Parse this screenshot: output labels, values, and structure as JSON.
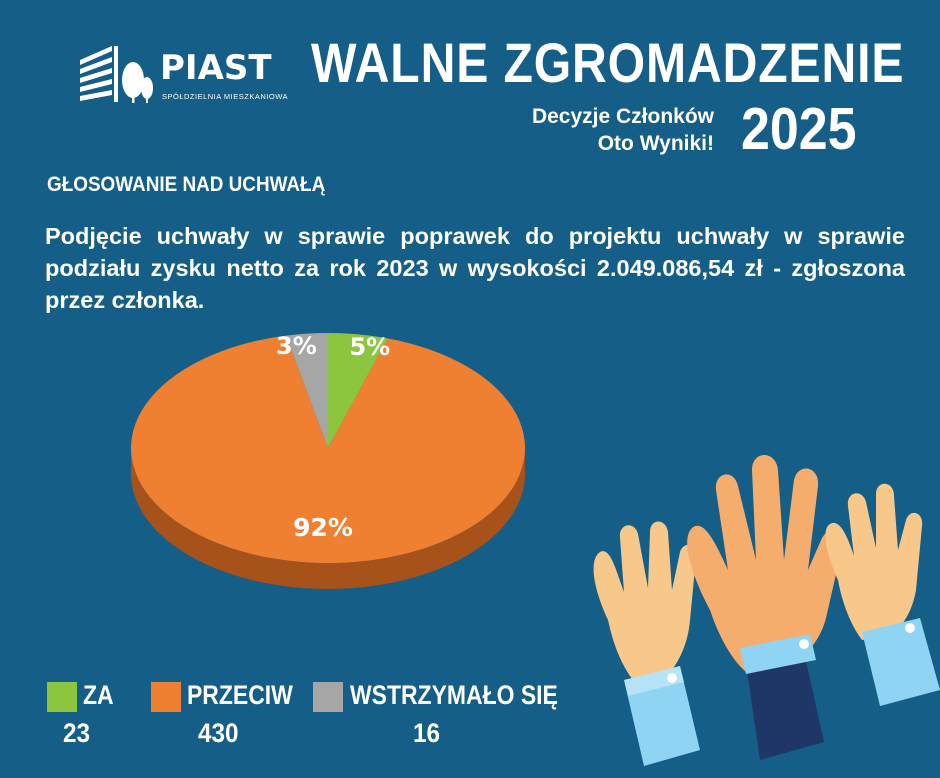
{
  "logo": {
    "name": "PIAST",
    "subtitle": "SPÓŁDZIELNIA MIESZKANIOWA"
  },
  "header": {
    "title": "WALNE ZGROMADZENIE",
    "subtitle_line1": "Decyzje Członków",
    "subtitle_line2": "Oto Wyniki!",
    "year": "2025"
  },
  "section_heading": "GŁOSOWANIE NAD UCHWAŁĄ",
  "question": "Podjęcie uchwały w sprawie poprawek do projektu uchwały w sprawie podziału zysku netto za rok 2023 w wysokości 2.049.086,54 zł - zgłoszona przez członka.",
  "colors": {
    "background": "#145e87",
    "za": "#8cc63f",
    "przeciw": "#ef8032",
    "wstrzymalo": "#a6a6a6"
  },
  "chart_data": {
    "type": "pie",
    "categories": [
      "ZA",
      "PRZECIW",
      "WSTRZYMAŁO SIĘ"
    ],
    "values": [
      23,
      430,
      16
    ],
    "percent_labels": [
      "5%",
      "92%",
      "3%"
    ],
    "colors": [
      "#8cc63f",
      "#ef8032",
      "#a6a6a6"
    ]
  },
  "legend": [
    {
      "label": "ZA",
      "count": "23"
    },
    {
      "label": "PRZECIW",
      "count": "430"
    },
    {
      "label": "WSTRZYMAŁO SIĘ",
      "count": "16"
    }
  ]
}
